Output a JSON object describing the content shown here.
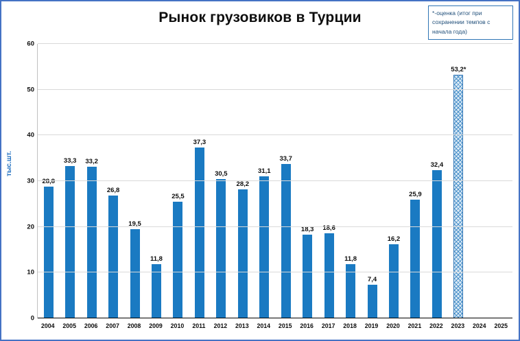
{
  "title": "Рынок грузовиков в Турции",
  "annotation": "*-оценка (итог при сохранении темпов с начала года)",
  "y_axis_title": "тыс.шт.",
  "chart_data": {
    "type": "bar",
    "title": "Рынок грузовиков в Турции",
    "xlabel": "",
    "ylabel": "тыс.шт.",
    "ylim": [
      0,
      60
    ],
    "yticks": [
      0,
      10,
      20,
      30,
      40,
      50,
      60
    ],
    "grid": true,
    "legend": "none",
    "categories": [
      "2004",
      "2005",
      "2006",
      "2007",
      "2008",
      "2009",
      "2010",
      "2011",
      "2012",
      "2013",
      "2014",
      "2015",
      "2016",
      "2017",
      "2018",
      "2019",
      "2020",
      "2021",
      "2022",
      "2023",
      "2024",
      "2025"
    ],
    "values": [
      28.8,
      33.3,
      33.2,
      26.8,
      19.5,
      11.8,
      25.5,
      37.3,
      30.5,
      28.2,
      31.1,
      33.7,
      18.3,
      18.6,
      11.8,
      7.4,
      16.2,
      25.9,
      32.4,
      53.2,
      null,
      null
    ],
    "value_labels": [
      "28,8",
      "33,3",
      "33,2",
      "26,8",
      "19,5",
      "11,8",
      "25,5",
      "37,3",
      "30,5",
      "28,2",
      "31,1",
      "33,7",
      "18,3",
      "18,6",
      "11,8",
      "7,4",
      "16,2",
      "25,9",
      "32,4",
      "53,2*",
      "",
      ""
    ],
    "estimated_category": "2023",
    "estimated_note": "*-оценка (итог при сохранении темпов с начала года)",
    "colors": {
      "bar": "#1a7ac2",
      "estimated_fill": "#dcebf7",
      "estimated_hatch": "#4a90c8",
      "frame_border": "#4472c4",
      "annotation_text": "#1f4e79",
      "axis_title": "#1f6fc0"
    }
  }
}
